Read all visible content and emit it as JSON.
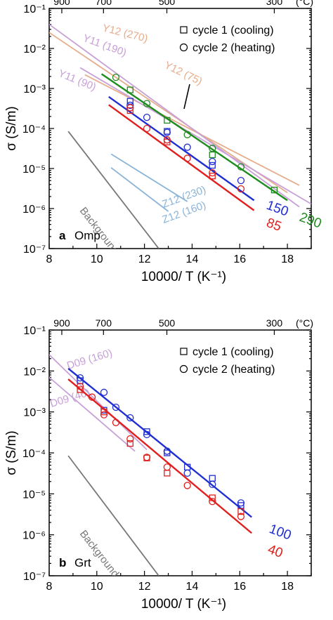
{
  "chart_data": [
    {
      "type": "scatter",
      "panel_letter": "a",
      "panel_name": "Omp",
      "xlabel": "10000/ T (K⁻¹)",
      "ylabel": "σ (S/m)",
      "xlim": [
        8,
        19
      ],
      "ylim_log10": [
        -7,
        -1
      ],
      "x_ticks": [
        "8",
        "10",
        "12",
        "14",
        "16",
        "18"
      ],
      "y_ticks": [
        "10⁻⁷",
        "10⁻⁶",
        "10⁻⁵",
        "10⁻⁴",
        "10⁻³",
        "10⁻²",
        "10⁻¹"
      ],
      "top_axis_unit": "(°C)",
      "top_ticks": [
        {
          "label": "900",
          "x": 8.53
        },
        {
          "label": "700",
          "x": 10.28
        },
        {
          "label": "500",
          "x": 12.94
        },
        {
          "label": "300",
          "x": 17.45
        }
      ],
      "legend": [
        {
          "marker": "square",
          "label": "cycle 1 (cooling)"
        },
        {
          "marker": "circle",
          "label": "cycle 2 (heating)"
        }
      ],
      "literature_lines": [
        {
          "label": "Y12 (270)",
          "color": "#e6ad8c",
          "x": [
            8.0,
            18.0
          ],
          "y": [
            0.025,
            2.5e-06
          ]
        },
        {
          "label": "Y12 (75)",
          "color": "#e6ad8c",
          "x": [
            9.5,
            18.5
          ],
          "y": [
            0.0022,
            3.8e-06
          ]
        },
        {
          "label": "Y11 (190)",
          "color": "#c8a0d8",
          "x": [
            8.0,
            18.5
          ],
          "y": [
            0.04,
            1.1e-06
          ]
        },
        {
          "label": "Y11 (90)",
          "color": "#c8a0d8",
          "x": [
            9.3,
            19.0
          ],
          "y": [
            0.0033,
            1.3e-06
          ]
        },
        {
          "label": "Z12 (230)",
          "color": "#8ab4d8",
          "x": [
            10.6,
            13.8
          ],
          "y": [
            2.3e-05,
            1.5e-06
          ]
        },
        {
          "label": "Z12 (160)",
          "color": "#8ab4d8",
          "x": [
            10.6,
            13.0
          ],
          "y": [
            1.05e-05,
            8.5e-07
          ]
        },
        {
          "label": "Background",
          "color": "#777777",
          "x": [
            8.8,
            12.6
          ],
          "y": [
            8.5e-05,
            1e-07
          ]
        }
      ],
      "series": [
        {
          "name": "290",
          "color": "#1e8c1e",
          "fit": {
            "x": [
              10.2,
              18.0
            ],
            "y": [
              0.0023,
              1.6e-06
            ]
          },
          "cycle1": {
            "x": [
              11.4,
              12.95,
              14.85,
              17.45
            ],
            "y": [
              0.00092,
              0.00016,
              2.2e-05,
              2.9e-06
            ]
          },
          "cycle2": {
            "x": [
              10.8,
              12.1,
              13.8,
              14.85,
              16.05
            ],
            "y": [
              0.0019,
              0.00042,
              7e-05,
              3.2e-05,
              1.1e-05
            ]
          }
        },
        {
          "name": "150",
          "color": "#1f2ed1",
          "fit": {
            "x": [
              10.5,
              16.6
            ],
            "y": [
              0.00062,
              1.6e-06
            ]
          },
          "cycle1": {
            "x": [
              11.4,
              12.95,
              14.85
            ],
            "y": [
              0.00048,
              8.5e-05,
              1.2e-05
            ]
          },
          "cycle2": {
            "x": [
              11.4,
              12.1,
              12.95,
              13.8,
              14.85,
              16.05
            ],
            "y": [
              0.00038,
              0.00019,
              8e-05,
              3.4e-05,
              1.5e-05,
              5e-06
            ]
          }
        },
        {
          "name": "85",
          "color": "#e0201e",
          "fit": {
            "x": [
              10.5,
              16.6
            ],
            "y": [
              0.00039,
              9e-07
            ]
          },
          "cycle1": {
            "x": [
              11.4,
              12.95,
              14.85
            ],
            "y": [
              0.00028,
              4.6e-05,
              6.5e-06
            ]
          },
          "cycle2": {
            "x": [
              11.4,
              12.1,
              12.95,
              13.8,
              14.85,
              16.05
            ],
            "y": [
              0.00033,
              0.0001,
              5.2e-05,
              1.8e-05,
              7.8e-06,
              3.1e-06
            ]
          }
        }
      ]
    },
    {
      "type": "scatter",
      "panel_letter": "b",
      "panel_name": "Grt",
      "xlabel": "10000/ T (K⁻¹)",
      "ylabel": "σ (S/m)",
      "xlim": [
        8,
        19
      ],
      "ylim_log10": [
        -7,
        -1
      ],
      "x_ticks": [
        "8",
        "10",
        "12",
        "14",
        "16",
        "18"
      ],
      "y_ticks": [
        "10⁻⁷",
        "10⁻⁶",
        "10⁻⁵",
        "10⁻⁴",
        "10⁻³",
        "10⁻²",
        "10⁻¹"
      ],
      "top_axis_unit": "(°C)",
      "top_ticks": [
        {
          "label": "900",
          "x": 8.53
        },
        {
          "label": "700",
          "x": 10.28
        },
        {
          "label": "500",
          "x": 12.94
        },
        {
          "label": "300",
          "x": 17.45
        }
      ],
      "legend": [
        {
          "marker": "square",
          "label": "cycle 1 (cooling)"
        },
        {
          "marker": "circle",
          "label": "cycle 2 (heating)"
        }
      ],
      "literature_lines": [
        {
          "label": "D09 (160)",
          "color": "#c8a0d8",
          "x": [
            8.0,
            12.1
          ],
          "y": [
            0.025,
            0.00012
          ]
        },
        {
          "label": "D09 (46)",
          "color": "#c8a0d8",
          "x": [
            8.0,
            11.6
          ],
          "y": [
            0.007,
            0.00011
          ]
        },
        {
          "label": "Background",
          "color": "#777777",
          "x": [
            8.8,
            12.6
          ],
          "y": [
            8.5e-05,
            1e-07
          ]
        }
      ],
      "series": [
        {
          "name": "100",
          "color": "#1f2ed1",
          "fit": {
            "x": [
              8.8,
              16.5
            ],
            "y": [
              0.0115,
              2.7e-06
            ]
          },
          "cycle1": {
            "x": [
              9.3,
              10.3,
              12.1,
              12.95,
              13.8,
              14.85,
              16.05
            ],
            "y": [
              0.0058,
              0.0011,
              0.00033,
              0.0001,
              4.5e-05,
              2.4e-05,
              5.2e-06
            ]
          },
          "cycle2": {
            "x": [
              9.3,
              10.3,
              10.8,
              11.4,
              12.1,
              12.95,
              13.8,
              14.85,
              16.05
            ],
            "y": [
              0.0068,
              0.003,
              0.0013,
              0.00072,
              0.00028,
              0.00011,
              3.2e-05,
              1.7e-05,
              6e-06
            ]
          }
        },
        {
          "name": "40",
          "color": "#e0201e",
          "fit": {
            "x": [
              8.8,
              16.5
            ],
            "y": [
              0.0063,
              1.1e-06
            ]
          },
          "cycle1": {
            "x": [
              9.3,
              10.3,
              11.4,
              12.1,
              12.95,
              14.85,
              16.05
            ],
            "y": [
              0.0035,
              0.001,
              0.00017,
              7.5e-05,
              3.2e-05,
              8e-06,
              3.7e-06
            ]
          },
          "cycle2": {
            "x": [
              9.3,
              9.8,
              10.3,
              10.8,
              11.4,
              12.1,
              12.95,
              13.8,
              14.85,
              16.05
            ],
            "y": [
              0.0042,
              0.0023,
              0.00085,
              0.00055,
              0.00022,
              7.8e-05,
              4.5e-05,
              1.6e-05,
              6.5e-06,
              2.8e-06
            ]
          }
        }
      ]
    }
  ]
}
